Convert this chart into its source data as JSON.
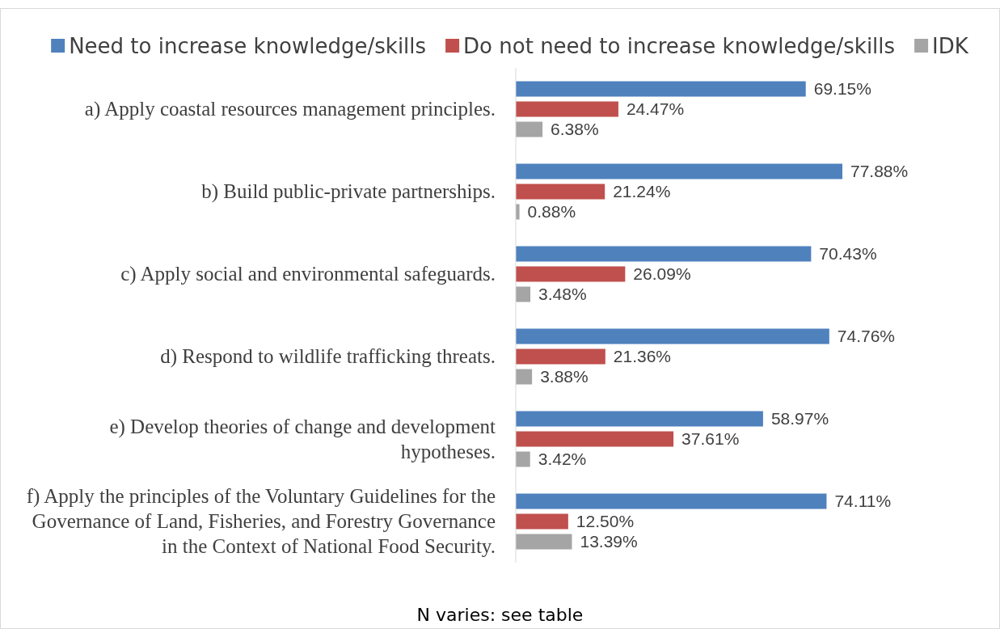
{
  "chart_data": {
    "type": "bar",
    "orientation": "horizontal",
    "categories": [
      "a) Apply coastal resources management principles.",
      "b) Build public-private partnerships.",
      "c) Apply social and environmental safeguards.",
      "d) Respond to wildlife trafficking threats.",
      "e) Develop theories of change and development hypotheses.",
      "f) Apply the principles of the Voluntary Guidelines for the Governance of Land, Fisheries, and Forestry Governance in the Context of National Food Security."
    ],
    "series": [
      {
        "name": "Need to increase knowledge/skills",
        "color": "#4f81bd",
        "values": [
          69.15,
          77.88,
          70.43,
          74.76,
          58.97,
          74.11
        ],
        "value_labels": [
          "69.15%",
          "77.88%",
          "70.43%",
          "74.76%",
          "58.97%",
          "74.11%"
        ]
      },
      {
        "name": "Do not need to increase knowledge/skills",
        "color": "#c0504d",
        "values": [
          24.47,
          21.24,
          26.09,
          21.36,
          37.61,
          12.5
        ],
        "value_labels": [
          "24.47%",
          "21.24%",
          "26.09%",
          "21.36%",
          "37.61%",
          "12.50%"
        ]
      },
      {
        "name": "IDK",
        "color": "#a5a5a5",
        "values": [
          6.38,
          0.88,
          3.48,
          3.88,
          3.42,
          13.39
        ],
        "value_labels": [
          "6.38%",
          "0.88%",
          "3.48%",
          "3.88%",
          "3.42%",
          "13.39%"
        ]
      }
    ],
    "tick_labels": "y",
    "legend": "top",
    "annotations": [
      "N varies: see table"
    ]
  }
}
